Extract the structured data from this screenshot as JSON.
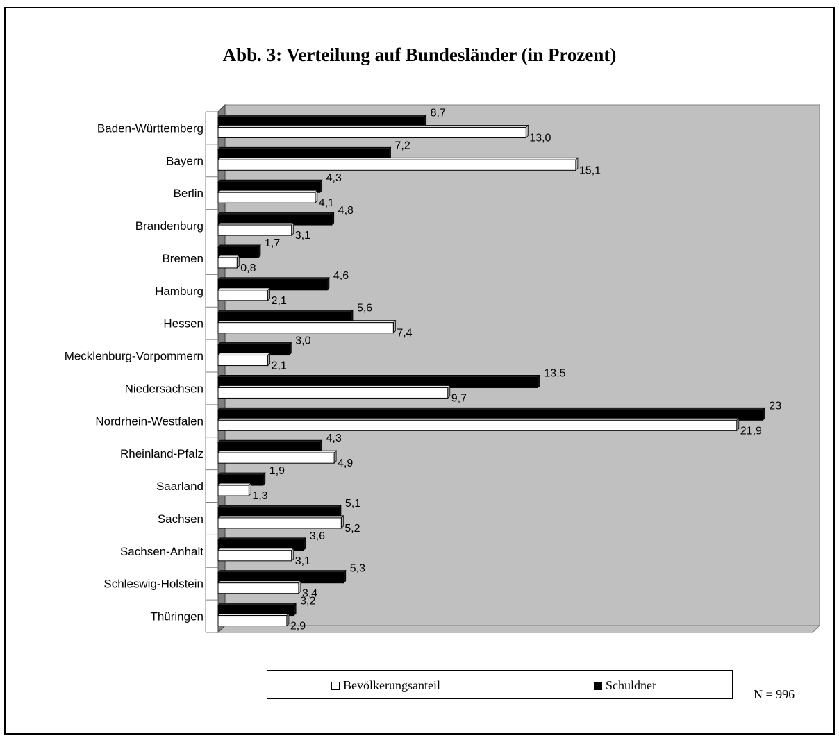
{
  "chart_data": {
    "type": "bar",
    "orientation": "horizontal",
    "title": "Abb. 3: Verteilung auf Bundesländer (in Prozent)",
    "categories": [
      "Baden-Württemberg",
      "Bayern",
      "Berlin",
      "Brandenburg",
      "Bremen",
      "Hamburg",
      "Hessen",
      "Mecklenburg-Vorpommern",
      "Niedersachsen",
      "Nordrhein-Westfalen",
      "Rheinland-Pfalz",
      "Saarland",
      "Sachsen",
      "Sachsen-Anhalt",
      "Schleswig-Holstein",
      "Thüringen"
    ],
    "series": [
      {
        "name": "Schuldner",
        "color": "#000000",
        "values": [
          8.7,
          7.2,
          4.3,
          4.8,
          1.7,
          4.6,
          5.6,
          3.0,
          13.5,
          23,
          4.3,
          1.9,
          5.1,
          3.6,
          5.3,
          3.2
        ],
        "labels": [
          "8,7",
          "7,2",
          "4,3",
          "4,8",
          "1,7",
          "4,6",
          "5,6",
          "3,0",
          "13,5",
          "23",
          "4,3",
          "1,9",
          "5,1",
          "3,6",
          "5,3",
          "3,2"
        ]
      },
      {
        "name": "Bevölkerungsanteil",
        "color": "#ffffff",
        "values": [
          13.0,
          15.1,
          4.1,
          3.1,
          0.8,
          2.1,
          7.4,
          2.1,
          9.7,
          21.9,
          4.9,
          1.3,
          5.2,
          3.1,
          3.4,
          2.9
        ],
        "labels": [
          "13,0",
          "15,1",
          "4,1",
          "3,1",
          "0,8",
          "2,1",
          "7,4",
          "2,1",
          "9,7",
          "21,9",
          "4,9",
          "1,3",
          "5,2",
          "3,1",
          "3,4",
          "2,9"
        ]
      }
    ],
    "xlim": [
      0,
      25
    ],
    "grid": false,
    "plot_background": "#c0c0c0",
    "legend_position": "bottom"
  },
  "legend": {
    "population_label": "Bevölkerungsanteil",
    "debtors_label": "Schuldner"
  },
  "note": "N = 996"
}
